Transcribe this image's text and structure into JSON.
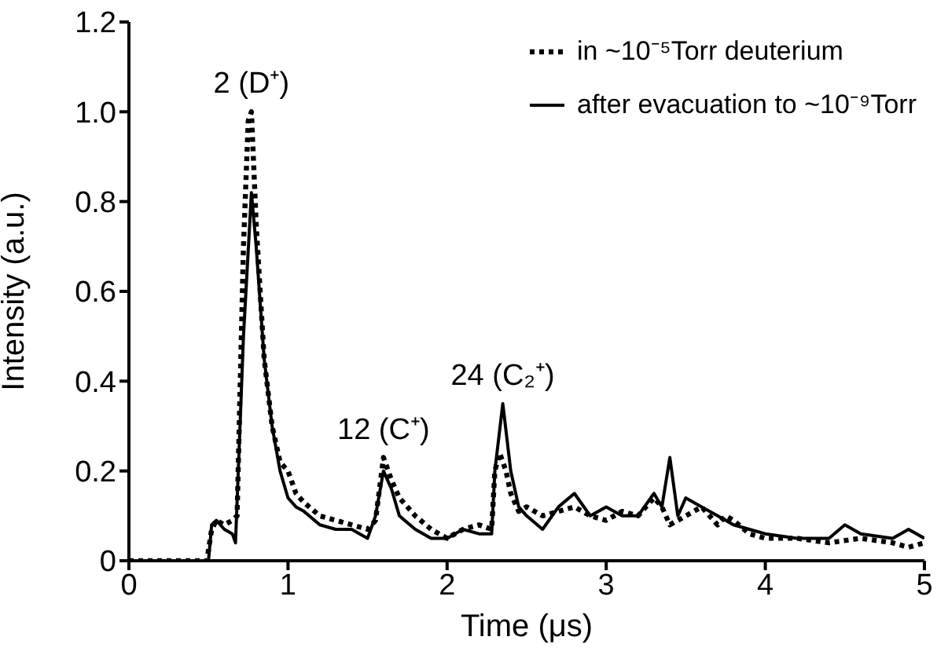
{
  "chart_data": {
    "type": "line",
    "xlabel": "Time (μs)",
    "ylabel": "Intensity (a.u.)",
    "xlim": [
      0,
      5
    ],
    "xticks": [
      0,
      1,
      2,
      3,
      4,
      5
    ],
    "ylim": [
      0,
      1.2
    ],
    "yticks": [
      0,
      {
        "value": 0.2,
        "label": "0.2"
      },
      {
        "value": 0.4,
        "label": "0.4"
      },
      {
        "value": 0.6,
        "label": "0.6"
      },
      {
        "value": 0.8,
        "label": "0.8"
      },
      {
        "value": 1,
        "label": "1.0"
      },
      {
        "value": 1.2,
        "label": "1.2"
      }
    ],
    "grid": false,
    "legend": "top right",
    "marker": "none",
    "annotations": [
      {
        "text": "2 (D⁺)",
        "x": 0.77,
        "y": 1.0
      },
      {
        "text": "12 (C⁺)",
        "x": 1.6,
        "y": 0.23
      },
      {
        "text": "24 (C₂⁺)",
        "x": 2.35,
        "y": 0.35
      }
    ],
    "series": [
      {
        "name": "in ~10⁻⁵Torr deuterium",
        "color": "#000000",
        "line_style": "dotted",
        "x": [
          0,
          0.49,
          0.52,
          0.55,
          0.6,
          0.65,
          0.68,
          0.72,
          0.75,
          0.77,
          0.8,
          0.85,
          0.9,
          0.95,
          1.0,
          1.05,
          1.1,
          1.2,
          1.3,
          1.4,
          1.5,
          1.55,
          1.6,
          1.65,
          1.7,
          1.8,
          1.9,
          2.0,
          2.1,
          2.2,
          2.28,
          2.3,
          2.33,
          2.37,
          2.4,
          2.45,
          2.5,
          2.6,
          2.7,
          2.8,
          2.9,
          3.0,
          3.1,
          3.2,
          3.3,
          3.35,
          3.4,
          3.5,
          3.6,
          3.7,
          3.75,
          3.8,
          3.9,
          4.0,
          4.2,
          4.4,
          4.6,
          4.8,
          4.9,
          5.0
        ],
        "values": [
          0,
          0,
          0.07,
          0.09,
          0.08,
          0.09,
          0.1,
          0.7,
          0.98,
          1.0,
          0.75,
          0.45,
          0.3,
          0.22,
          0.2,
          0.15,
          0.13,
          0.1,
          0.09,
          0.08,
          0.07,
          0.09,
          0.23,
          0.18,
          0.14,
          0.1,
          0.07,
          0.05,
          0.07,
          0.08,
          0.07,
          0.2,
          0.24,
          0.2,
          0.15,
          0.11,
          0.12,
          0.1,
          0.11,
          0.12,
          0.1,
          0.09,
          0.11,
          0.1,
          0.14,
          0.12,
          0.08,
          0.1,
          0.12,
          0.08,
          0.1,
          0.09,
          0.06,
          0.05,
          0.05,
          0.04,
          0.05,
          0.04,
          0.03,
          0.04
        ]
      },
      {
        "name": "after evacuation to ~10⁻⁹Torr",
        "color": "#000000",
        "line_style": "solid",
        "x": [
          0,
          0.5,
          0.52,
          0.55,
          0.6,
          0.65,
          0.67,
          0.72,
          0.77,
          0.8,
          0.85,
          0.9,
          0.95,
          1.0,
          1.05,
          1.1,
          1.2,
          1.3,
          1.4,
          1.5,
          1.55,
          1.6,
          1.65,
          1.7,
          1.8,
          1.9,
          2.0,
          2.1,
          2.2,
          2.28,
          2.3,
          2.35,
          2.4,
          2.45,
          2.5,
          2.6,
          2.7,
          2.8,
          2.9,
          3.0,
          3.1,
          3.2,
          3.3,
          3.35,
          3.4,
          3.45,
          3.5,
          3.6,
          3.7,
          3.8,
          3.9,
          4.0,
          4.2,
          4.4,
          4.5,
          4.6,
          4.8,
          4.9,
          5.0
        ],
        "values": [
          0,
          0,
          0.08,
          0.09,
          0.07,
          0.06,
          0.04,
          0.5,
          0.82,
          0.7,
          0.45,
          0.3,
          0.2,
          0.14,
          0.12,
          0.11,
          0.08,
          0.07,
          0.07,
          0.05,
          0.1,
          0.2,
          0.16,
          0.1,
          0.07,
          0.05,
          0.05,
          0.07,
          0.06,
          0.06,
          0.2,
          0.35,
          0.2,
          0.12,
          0.1,
          0.07,
          0.12,
          0.15,
          0.1,
          0.12,
          0.1,
          0.1,
          0.15,
          0.12,
          0.23,
          0.1,
          0.14,
          0.12,
          0.1,
          0.08,
          0.07,
          0.06,
          0.05,
          0.05,
          0.08,
          0.06,
          0.05,
          0.07,
          0.05
        ]
      }
    ]
  }
}
